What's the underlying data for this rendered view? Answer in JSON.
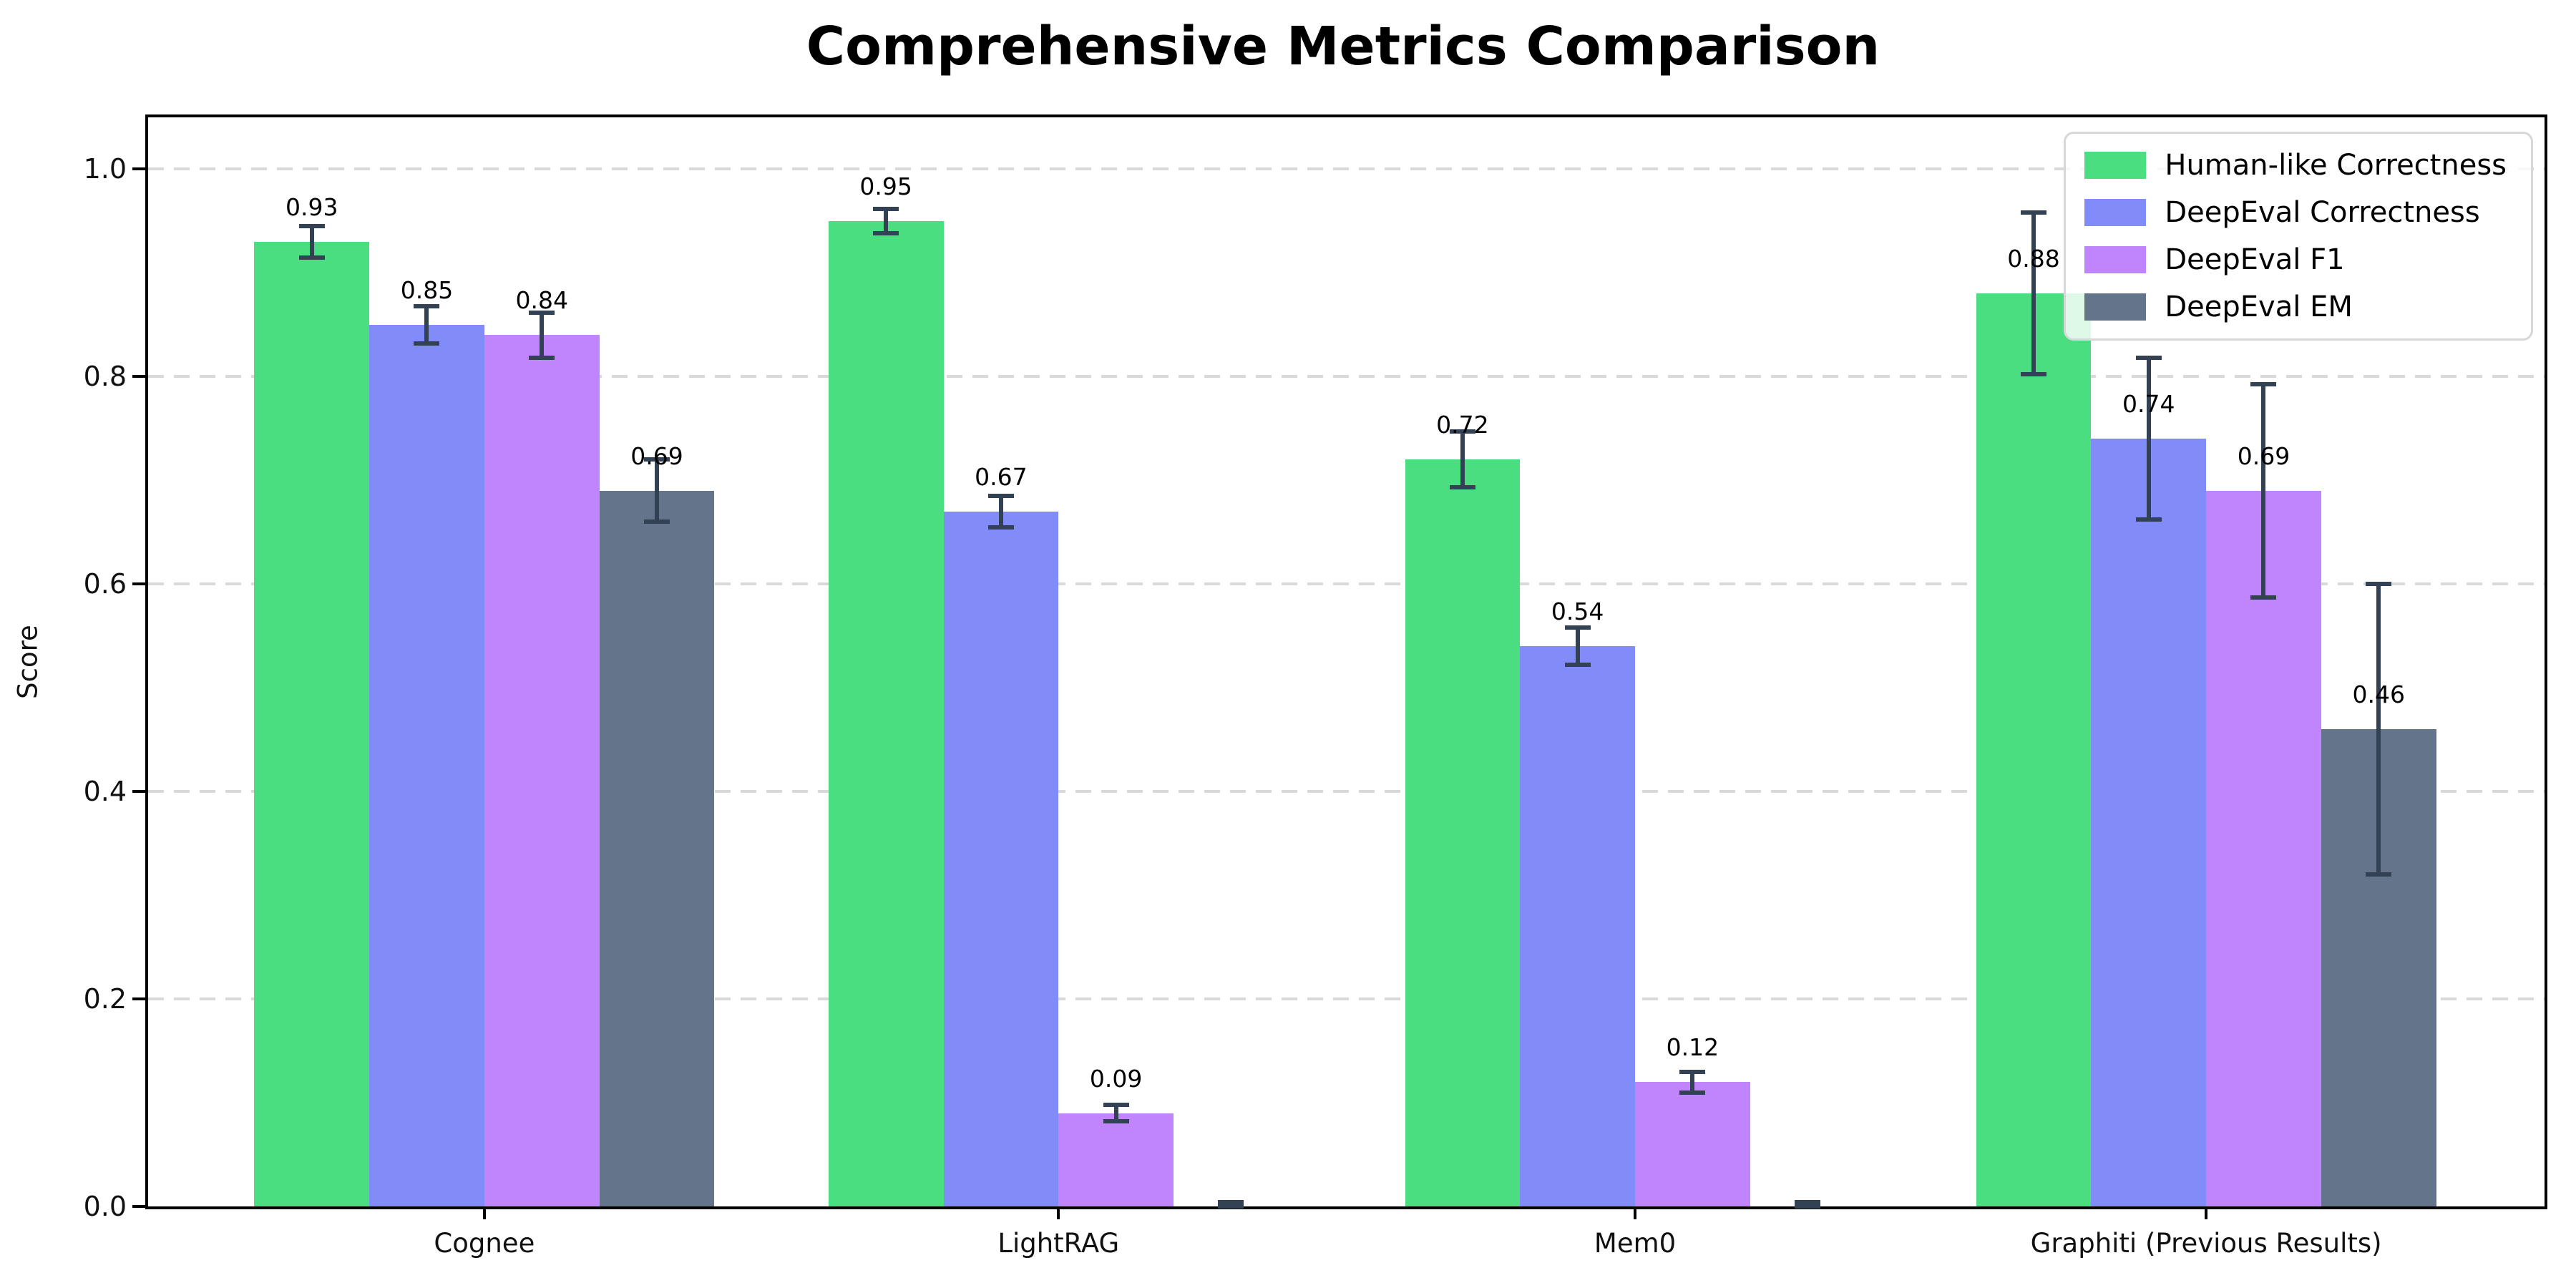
{
  "chart_data": {
    "type": "bar",
    "title": "Comprehensive Metrics Comparison",
    "xlabel": "",
    "ylabel": "Score",
    "categories": [
      "Cognee",
      "LightRAG",
      "Mem0",
      "Graphiti (Previous Results)"
    ],
    "series": [
      {
        "name": "Human-like Correctness",
        "color": "#4ade80",
        "values": [
          0.93,
          0.95,
          0.72,
          0.88
        ],
        "errors": [
          0.015,
          0.012,
          0.027,
          0.078
        ],
        "labels": [
          "0.93",
          "0.95",
          "0.72",
          "0.88"
        ]
      },
      {
        "name": "DeepEval Correctness",
        "color": "#818cf8",
        "values": [
          0.85,
          0.67,
          0.54,
          0.74
        ],
        "errors": [
          0.018,
          0.015,
          0.018,
          0.078
        ],
        "labels": [
          "0.85",
          "0.67",
          "0.54",
          "0.74"
        ]
      },
      {
        "name": "DeepEval F1",
        "color": "#c084fc",
        "values": [
          0.84,
          0.09,
          0.12,
          0.69
        ],
        "errors": [
          0.022,
          0.008,
          0.01,
          0.103
        ],
        "labels": [
          "0.84",
          "0.09",
          "0.12",
          "0.69"
        ]
      },
      {
        "name": "DeepEval EM",
        "color": "#64748b",
        "values": [
          0.69,
          0.0,
          0.0,
          0.46
        ],
        "errors": [
          0.03,
          0.004,
          0.004,
          0.14
        ],
        "labels": [
          "0.69",
          "",
          "",
          "0.46"
        ]
      }
    ],
    "yticks": [
      0.0,
      0.2,
      0.4,
      0.6,
      0.8,
      1.0
    ],
    "ytick_labels": [
      "0.0",
      "0.2",
      "0.4",
      "0.6",
      "0.8",
      "1.0"
    ],
    "ylim": [
      0,
      1.05
    ],
    "grid": "horizontal-dashed",
    "legend_position": "upper-right",
    "error_bar_color": "#334155",
    "bar_width_frac": 0.048,
    "group_centers_frac": [
      0.1403,
      0.3799,
      0.6205,
      0.8588
    ]
  }
}
